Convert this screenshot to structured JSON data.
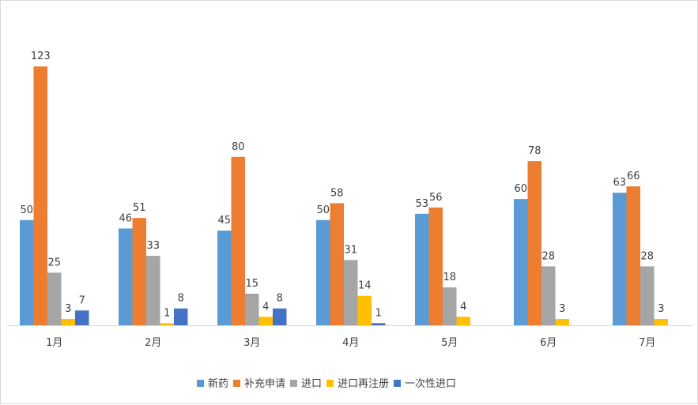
{
  "chart_data": {
    "type": "bar",
    "categories": [
      "1月",
      "2月",
      "3月",
      "4月",
      "5月",
      "6月",
      "7月"
    ],
    "series": [
      {
        "name": "新药",
        "color": "#5b9bd5",
        "values": [
          50,
          46,
          45,
          50,
          53,
          60,
          63
        ]
      },
      {
        "name": "补充申请",
        "color": "#ed7d31",
        "values": [
          123,
          51,
          80,
          58,
          56,
          78,
          66
        ]
      },
      {
        "name": "进口",
        "color": "#a5a5a5",
        "values": [
          25,
          33,
          15,
          31,
          18,
          28,
          28
        ]
      },
      {
        "name": "进口再注册",
        "color": "#ffc000",
        "values": [
          3,
          1,
          4,
          14,
          4,
          3,
          3
        ]
      },
      {
        "name": "一次性进口",
        "color": "#4472c4",
        "values": [
          7,
          8,
          8,
          1,
          null,
          null,
          null
        ]
      }
    ],
    "ylim": [
      0,
      123
    ],
    "grid": false,
    "legend": "bottom",
    "data_labels": true
  }
}
